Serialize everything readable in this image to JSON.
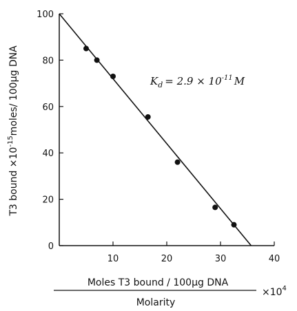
{
  "chart_data": {
    "type": "scatter",
    "title": "",
    "xlabel": {
      "numerator": "Moles T3 bound / 100μg DNA",
      "denominator": "Molarity",
      "multiplier_base": "×10",
      "multiplier_exp": "4"
    },
    "ylabel": {
      "prefix": "T3 bound ×10",
      "exp": "-15",
      "suffix": "moles/ 100μg DNA"
    },
    "xlim": [
      0,
      40
    ],
    "ylim": [
      0,
      100
    ],
    "xticks": [
      10,
      20,
      30,
      40
    ],
    "yticks": [
      0,
      20,
      40,
      60,
      80,
      100
    ],
    "grid": false,
    "points": [
      {
        "x": 5,
        "y": 85
      },
      {
        "x": 7,
        "y": 80
      },
      {
        "x": 10,
        "y": 73
      },
      {
        "x": 16.5,
        "y": 55.5
      },
      {
        "x": 22,
        "y": 36
      },
      {
        "x": 29,
        "y": 16.5
      },
      {
        "x": 32.5,
        "y": 9
      }
    ],
    "fit_line": {
      "x0": 0,
      "y0": 100,
      "x1": 35.7,
      "y1": 0
    },
    "annotation": {
      "k": "K",
      "sub": "d",
      "eq": "= 2.9 × 10",
      "exp": "-11",
      "unit": "M"
    }
  }
}
